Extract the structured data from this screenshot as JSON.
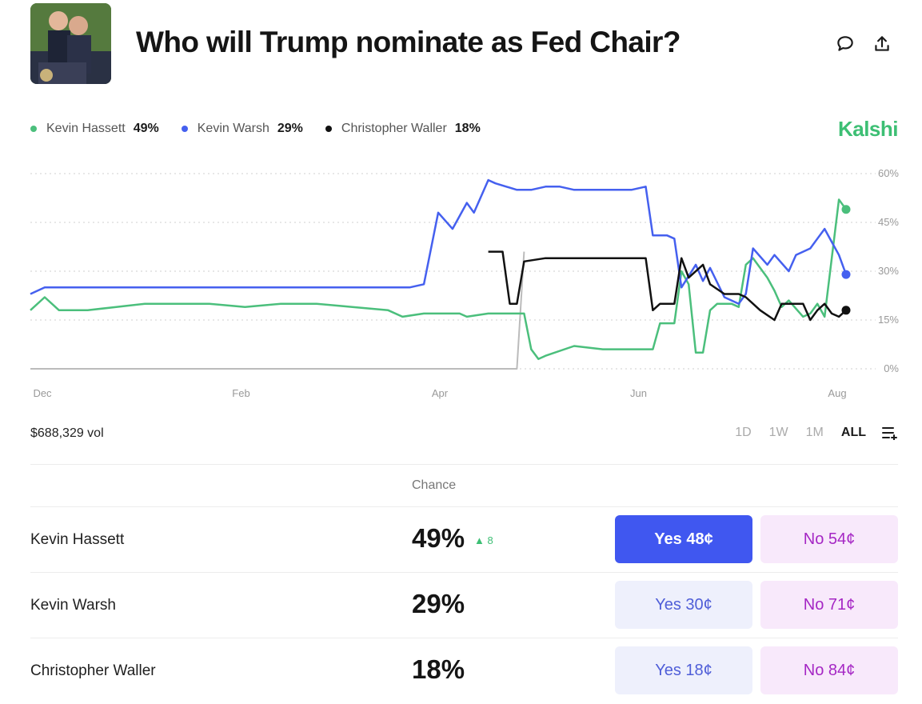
{
  "header": {
    "title": "Who will Trump nominate as Fed Chair?",
    "thumbnail_icon": "market-photo-icon",
    "comment_icon": "comment-icon",
    "share_icon": "share-icon"
  },
  "brand": {
    "name": "Kalshi",
    "color": "#3dbf74"
  },
  "legend": [
    {
      "name": "Kevin Hassett",
      "pct": "49%",
      "color": "#4bbf7c"
    },
    {
      "name": "Kevin Warsh",
      "pct": "29%",
      "color": "#4560ef"
    },
    {
      "name": "Christopher Waller",
      "pct": "18%",
      "color": "#111111"
    }
  ],
  "volume": "$688,329 vol",
  "ranges": [
    "1D",
    "1W",
    "1M",
    "ALL"
  ],
  "active_range": "ALL",
  "table": {
    "chance_header": "Chance",
    "rows": [
      {
        "name": "Kevin Hassett",
        "chance": "49%",
        "delta": "8",
        "yes": "Yes 48¢",
        "no": "No 54¢"
      },
      {
        "name": "Kevin Warsh",
        "chance": "29%",
        "delta": "",
        "yes": "Yes 30¢",
        "no": "No 71¢"
      },
      {
        "name": "Christopher Waller",
        "chance": "18%",
        "delta": "",
        "yes": "Yes 18¢",
        "no": "No 84¢"
      }
    ]
  },
  "chart_data": {
    "type": "line",
    "x_ticks": [
      "Dec",
      "Feb",
      "Apr",
      "Jun",
      "Aug"
    ],
    "y_ticks": [
      "0%",
      "15%",
      "30%",
      "45%",
      "60%"
    ],
    "ylim": [
      0,
      60
    ],
    "grid": true,
    "legend_position": "top-left",
    "series": [
      {
        "name": "Kevin Hassett",
        "color": "#4bbf7c",
        "points": [
          [
            0,
            18
          ],
          [
            0.02,
            22
          ],
          [
            0.04,
            18
          ],
          [
            0.08,
            18
          ],
          [
            0.12,
            19
          ],
          [
            0.16,
            20
          ],
          [
            0.2,
            20
          ],
          [
            0.25,
            20
          ],
          [
            0.3,
            19
          ],
          [
            0.35,
            20
          ],
          [
            0.4,
            20
          ],
          [
            0.45,
            19
          ],
          [
            0.5,
            18
          ],
          [
            0.52,
            16
          ],
          [
            0.55,
            17
          ],
          [
            0.6,
            17
          ],
          [
            0.61,
            16
          ],
          [
            0.64,
            17
          ],
          [
            0.66,
            17
          ],
          [
            0.69,
            17
          ],
          [
            0.7,
            6
          ],
          [
            0.71,
            3
          ],
          [
            0.72,
            4
          ],
          [
            0.76,
            7
          ],
          [
            0.8,
            6
          ],
          [
            0.84,
            6
          ],
          [
            0.87,
            6
          ],
          [
            0.88,
            14
          ],
          [
            0.9,
            14
          ],
          [
            0.91,
            30
          ],
          [
            0.92,
            26
          ],
          [
            0.93,
            5
          ],
          [
            0.94,
            5
          ],
          [
            0.95,
            18
          ],
          [
            0.96,
            20
          ],
          [
            0.98,
            20
          ],
          [
            0.99,
            19
          ],
          [
            1.0,
            32
          ],
          [
            1.01,
            34
          ],
          [
            1.03,
            28
          ],
          [
            1.04,
            24
          ],
          [
            1.05,
            19
          ],
          [
            1.06,
            21
          ],
          [
            1.08,
            16
          ],
          [
            1.09,
            17
          ],
          [
            1.1,
            20
          ],
          [
            1.11,
            16
          ],
          [
            1.13,
            52
          ],
          [
            1.14,
            49
          ]
        ]
      },
      {
        "name": "Kevin Warsh",
        "color": "#4560ef",
        "points": [
          [
            0,
            23
          ],
          [
            0.02,
            25
          ],
          [
            0.08,
            25
          ],
          [
            0.14,
            25
          ],
          [
            0.2,
            25
          ],
          [
            0.25,
            25
          ],
          [
            0.3,
            25
          ],
          [
            0.35,
            25
          ],
          [
            0.4,
            25
          ],
          [
            0.45,
            25
          ],
          [
            0.5,
            25
          ],
          [
            0.53,
            25
          ],
          [
            0.55,
            26
          ],
          [
            0.57,
            48
          ],
          [
            0.59,
            43
          ],
          [
            0.61,
            51
          ],
          [
            0.62,
            48
          ],
          [
            0.64,
            58
          ],
          [
            0.65,
            57
          ],
          [
            0.68,
            55
          ],
          [
            0.7,
            55
          ],
          [
            0.72,
            56
          ],
          [
            0.74,
            56
          ],
          [
            0.76,
            55
          ],
          [
            0.8,
            55
          ],
          [
            0.84,
            55
          ],
          [
            0.86,
            56
          ],
          [
            0.87,
            41
          ],
          [
            0.89,
            41
          ],
          [
            0.9,
            40
          ],
          [
            0.91,
            25
          ],
          [
            0.93,
            32
          ],
          [
            0.94,
            27
          ],
          [
            0.95,
            31
          ],
          [
            0.97,
            22
          ],
          [
            0.99,
            20
          ],
          [
            1.0,
            23
          ],
          [
            1.01,
            37
          ],
          [
            1.03,
            32
          ],
          [
            1.04,
            35
          ],
          [
            1.06,
            30
          ],
          [
            1.07,
            35
          ],
          [
            1.09,
            37
          ],
          [
            1.1,
            40
          ],
          [
            1.11,
            43
          ],
          [
            1.12,
            39
          ],
          [
            1.13,
            35
          ],
          [
            1.14,
            29
          ]
        ]
      },
      {
        "name": "Christopher Waller",
        "color": "#111111",
        "points": [
          [
            0.64,
            36
          ],
          [
            0.66,
            36
          ],
          [
            0.67,
            20
          ],
          [
            0.68,
            20
          ],
          [
            0.69,
            33
          ],
          [
            0.72,
            34
          ],
          [
            0.76,
            34
          ],
          [
            0.8,
            34
          ],
          [
            0.83,
            34
          ],
          [
            0.85,
            34
          ],
          [
            0.86,
            34
          ],
          [
            0.87,
            18
          ],
          [
            0.88,
            20
          ],
          [
            0.9,
            20
          ],
          [
            0.91,
            34
          ],
          [
            0.92,
            28
          ],
          [
            0.94,
            32
          ],
          [
            0.95,
            26
          ],
          [
            0.97,
            23
          ],
          [
            0.99,
            23
          ],
          [
            1.0,
            22
          ],
          [
            1.01,
            20
          ],
          [
            1.02,
            18
          ],
          [
            1.04,
            15
          ],
          [
            1.05,
            20
          ],
          [
            1.07,
            20
          ],
          [
            1.08,
            20
          ],
          [
            1.09,
            15
          ],
          [
            1.1,
            18
          ],
          [
            1.11,
            20
          ],
          [
            1.12,
            17
          ],
          [
            1.13,
            16
          ],
          [
            1.14,
            18
          ]
        ]
      },
      {
        "name": "",
        "color": "#bbbbbb",
        "points": [
          [
            0,
            0
          ],
          [
            0.68,
            0
          ],
          [
            0.69,
            36
          ]
        ]
      }
    ]
  }
}
